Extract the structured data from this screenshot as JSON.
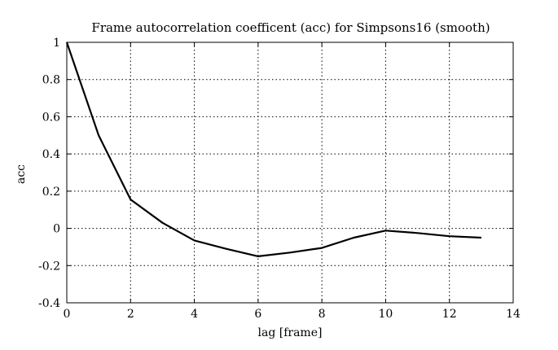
{
  "chart_data": {
    "type": "line",
    "title": "Frame autocorrelation coefficent (acc) for Simpsons16 (smooth)",
    "xlabel": "lag [frame]",
    "ylabel": "acc",
    "xlim": [
      0,
      14
    ],
    "ylim": [
      -0.4,
      1
    ],
    "xticks": [
      0,
      2,
      4,
      6,
      8,
      10,
      12,
      14
    ],
    "yticks": [
      -0.4,
      -0.2,
      0,
      0.2,
      0.4,
      0.6,
      0.8,
      1
    ],
    "xtick_labels": [
      "0",
      "2",
      "4",
      "6",
      "8",
      "10",
      "12",
      "14"
    ],
    "ytick_labels": [
      "-0.4",
      "-0.2",
      "0",
      "0.2",
      "0.4",
      "0.6",
      "0.8",
      "1"
    ],
    "grid": true,
    "series": [
      {
        "x": [
          0,
          1,
          2,
          3,
          4,
          5,
          6,
          7,
          8,
          9,
          10,
          11,
          12,
          13
        ],
        "values": [
          1.0,
          0.5,
          0.155,
          0.03,
          -0.065,
          -0.11,
          -0.15,
          -0.13,
          -0.105,
          -0.05,
          -0.012,
          -0.025,
          -0.042,
          -0.05
        ]
      }
    ],
    "colors": {
      "line": "#000000",
      "grid": "#000000",
      "frame": "#000000"
    }
  }
}
